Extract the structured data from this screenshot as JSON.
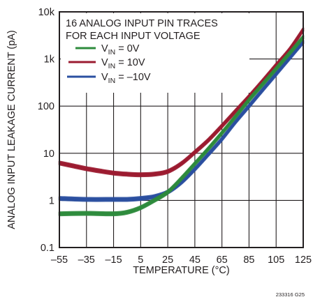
{
  "chart_data": {
    "type": "line",
    "title": "",
    "xlabel": "TEMPERATURE (°C)",
    "ylabel": "ANALOG INPUT LEAKAGE CURRENT (pA)",
    "xlim": [
      -55,
      125
    ],
    "ylim": [
      0.1,
      10000
    ],
    "y_scale": "log",
    "grid": true,
    "x_ticks": [
      "–55",
      "–35",
      "–15",
      "5",
      "25",
      "45",
      "65",
      "85",
      "105",
      "125"
    ],
    "y_ticks": [
      "0.1",
      "1",
      "10",
      "100",
      "1k",
      "10k"
    ],
    "legend_title": [
      "16 ANALOG INPUT PIN TRACES",
      "FOR EACH INPUT VOLTAGE"
    ],
    "legend_position": "top-left",
    "series": [
      {
        "name": "VIN = 0V",
        "name_main": "V",
        "name_sub": "IN",
        "name_rest": " = 0V",
        "color": "#2e8b3c",
        "x": [
          -55,
          -35,
          -15,
          -5,
          5,
          15,
          25,
          35,
          45,
          55,
          65,
          75,
          85,
          95,
          105,
          115,
          125
        ],
        "y": [
          0.52,
          0.53,
          0.52,
          0.56,
          0.7,
          1.0,
          1.5,
          2.9,
          6.0,
          12.5,
          27,
          60,
          135,
          290,
          620,
          1330,
          2900
        ]
      },
      {
        "name": "VIN = 10V",
        "name_main": "V",
        "name_sub": "IN",
        "name_rest": " = 10V",
        "color": "#9b1b30",
        "x": [
          -55,
          -45,
          -35,
          -25,
          -15,
          -5,
          5,
          15,
          25,
          35,
          45,
          55,
          65,
          75,
          85,
          95,
          105,
          115,
          125
        ],
        "y": [
          6.2,
          5.4,
          4.7,
          4.2,
          3.8,
          3.6,
          3.5,
          3.6,
          4.1,
          6.0,
          10.5,
          19,
          38,
          78,
          160,
          340,
          740,
          1600,
          4200
        ]
      },
      {
        "name": "VIN = –10V",
        "name_main": "V",
        "name_sub": "IN",
        "name_rest": " = –10V",
        "color": "#2a4fa0",
        "x": [
          -55,
          -35,
          -15,
          -5,
          5,
          15,
          25,
          35,
          45,
          55,
          65,
          75,
          85,
          95,
          105,
          115,
          125
        ],
        "y": [
          1.1,
          1.05,
          1.05,
          1.05,
          1.1,
          1.2,
          1.5,
          2.4,
          4.6,
          9.5,
          20,
          46,
          100,
          220,
          480,
          1050,
          2300
        ]
      }
    ]
  },
  "doc_id": "233316 G25"
}
